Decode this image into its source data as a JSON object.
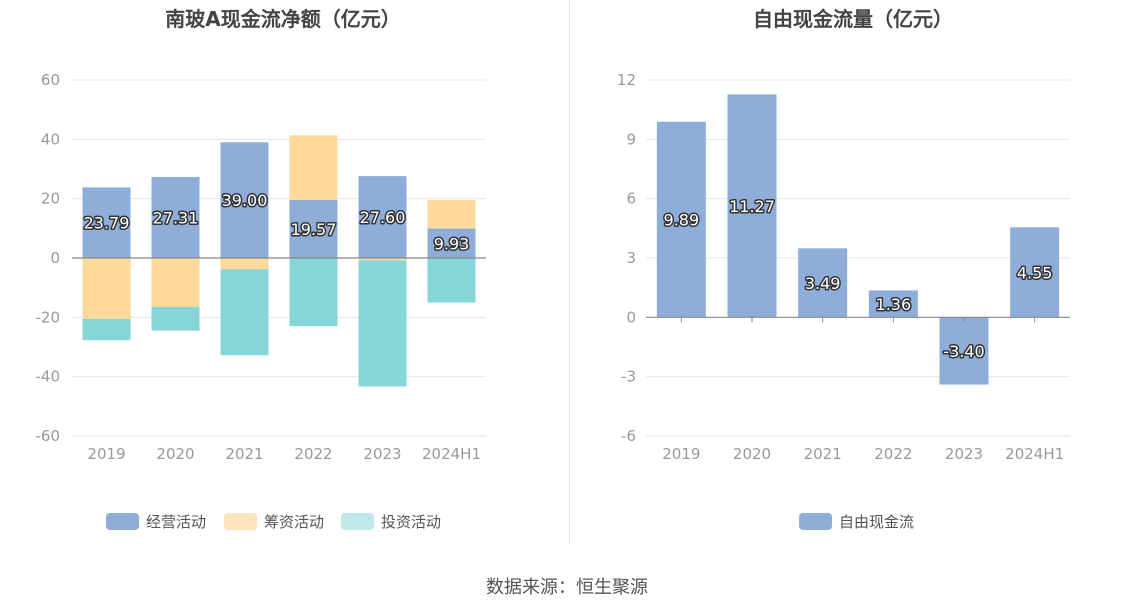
{
  "colors": {
    "operating": "#8eadd9",
    "financing": "#ffd99b",
    "investing": "#86d5d8",
    "free_cash": "#8eadd9",
    "grid": "#e3e6ee",
    "axis_text": "#999999",
    "title_text": "#444444"
  },
  "source_text": "数据来源：恒生聚源",
  "chart_data": [
    {
      "type": "bar",
      "stacked": true,
      "title": "南玻A现金流净额（亿元）",
      "categories": [
        "2019",
        "2020",
        "2021",
        "2022",
        "2023",
        "2024H1"
      ],
      "ylim": [
        -60,
        60
      ],
      "yticks": [
        "60",
        "40",
        "20",
        "0",
        "-20",
        "-40",
        "-60"
      ],
      "grid": true,
      "legend_position": "bottom",
      "series": [
        {
          "name": "经营活动",
          "values": [
            23.79,
            27.31,
            39.0,
            19.57,
            27.6,
            9.93
          ],
          "labels": [
            "23.79",
            "27.31",
            "39.00",
            "19.57",
            "27.60",
            "9.93"
          ]
        },
        {
          "name": "筹资活动",
          "values": [
            -20.5,
            -16.5,
            -3.8,
            21.8,
            -0.8,
            9.6
          ]
        },
        {
          "name": "投资活动",
          "values": [
            -7.2,
            -8.0,
            -29.0,
            -23.0,
            -42.5,
            -15.0
          ]
        }
      ],
      "legend_swatch_colors": [
        "#8eadd9",
        "#fde4bc",
        "#c0e9eb"
      ]
    },
    {
      "type": "bar",
      "title": "自由现金流量（亿元）",
      "categories": [
        "2019",
        "2020",
        "2021",
        "2022",
        "2023",
        "2024H1"
      ],
      "ylim": [
        -6,
        12
      ],
      "yticks": [
        "12",
        "9",
        "6",
        "3",
        "0",
        "-3",
        "-6"
      ],
      "grid": true,
      "legend_position": "bottom",
      "series": [
        {
          "name": "自由现金流",
          "values": [
            9.89,
            11.27,
            3.49,
            1.36,
            -3.4,
            4.55
          ],
          "labels": [
            "9.89",
            "11.27",
            "3.49",
            "1.36",
            "-3.40",
            "4.55"
          ]
        }
      ]
    }
  ]
}
